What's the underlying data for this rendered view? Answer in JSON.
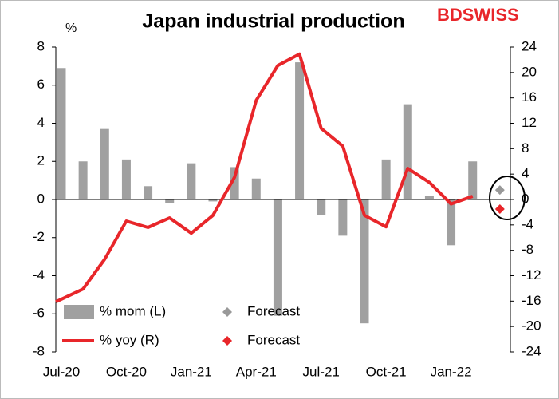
{
  "chart_data": {
    "type": "bar_line",
    "title": "Japan industrial production",
    "y_label": "%",
    "logo": "BDSWISS",
    "categories": [
      "Jul-20",
      null,
      null,
      "Oct-20",
      null,
      null,
      "Jan-21",
      null,
      null,
      "Apr-21",
      null,
      null,
      "Jul-21",
      null,
      null,
      "Oct-21",
      null,
      null,
      "Jan-22",
      null,
      null
    ],
    "series": [
      {
        "name": "% mom (L)",
        "type": "bar",
        "color": "#a0a0a0",
        "values": [
          6.9,
          2.0,
          3.7,
          2.1,
          0.7,
          -0.2,
          1.9,
          -0.1,
          1.7,
          1.1,
          -6.1,
          7.2,
          -0.8,
          -1.9,
          -6.5,
          2.1,
          5.0,
          0.2,
          -2.4,
          2.0,
          null
        ]
      },
      {
        "name": "% yoy (R)",
        "type": "line",
        "axis": "y2",
        "color": "#e8262a",
        "values": [
          -16.1,
          -14.1,
          -9.4,
          -3.4,
          -4.4,
          -2.9,
          -5.3,
          -2.5,
          3.5,
          15.6,
          21.1,
          22.9,
          11.2,
          8.4,
          -2.5,
          -4.3,
          4.9,
          2.7,
          -0.7,
          0.5,
          null
        ]
      },
      {
        "name": "Forecast",
        "type": "diamond",
        "color": "#999999",
        "values": [
          null,
          null,
          null,
          null,
          null,
          null,
          null,
          null,
          null,
          null,
          null,
          null,
          null,
          null,
          null,
          null,
          null,
          null,
          null,
          null,
          0.5
        ]
      },
      {
        "name": "Forecast",
        "type": "diamond",
        "axis": "y2",
        "color": "#e8262a",
        "values": [
          null,
          null,
          null,
          null,
          null,
          null,
          null,
          null,
          null,
          null,
          null,
          null,
          null,
          null,
          null,
          null,
          null,
          null,
          null,
          null,
          -1.5
        ]
      }
    ],
    "ylim": [
      -8,
      8
    ],
    "yticks": [
      -8,
      -6,
      -4,
      -2,
      0,
      2,
      4,
      6,
      8
    ],
    "y2lim": [
      -24,
      24
    ],
    "y2ticks": [
      -24,
      -20,
      -16,
      -12,
      -8,
      -4,
      0,
      4,
      8,
      12,
      16,
      20,
      24
    ]
  }
}
